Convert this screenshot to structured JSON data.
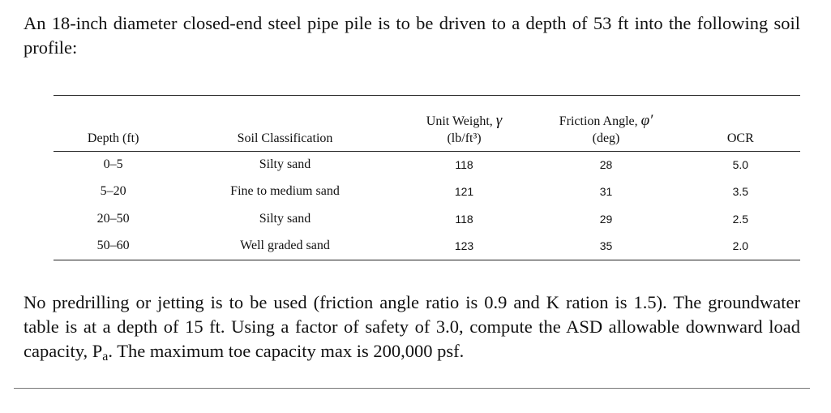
{
  "intro": "An 18-inch diameter closed-end steel pipe pile is to be driven to a depth of 53 ft into the following soil profile:",
  "table": {
    "headers": {
      "depth": "Depth (ft)",
      "soil": "Soil Classification",
      "unit_weight_line1": "Unit Weight, ",
      "unit_weight_symbol": "γ",
      "unit_weight_unit": "(lb/ft³)",
      "friction_line1": "Friction Angle, ",
      "friction_symbol": "φ′",
      "friction_unit": "(deg)",
      "ocr": "OCR"
    },
    "rows": [
      {
        "depth": "0–5",
        "soil": "Silty sand",
        "unit_weight": "118",
        "friction": "28",
        "ocr": "5.0"
      },
      {
        "depth": "5–20",
        "soil": "Fine to medium sand",
        "unit_weight": "121",
        "friction": "31",
        "ocr": "3.5"
      },
      {
        "depth": "20–50",
        "soil": "Silty sand",
        "unit_weight": "118",
        "friction": "29",
        "ocr": "2.5"
      },
      {
        "depth": "50–60",
        "soil": "Well graded sand",
        "unit_weight": "123",
        "friction": "35",
        "ocr": "2.0"
      }
    ]
  },
  "question": {
    "part1": "No predrilling or jetting is to be used (friction angle ratio is 0.9 and K ration is 1.5). The groundwater table is at a depth of 15 ft. Using a factor of safety of 3.0, compute the ASD allowable downward load capacity, P",
    "subscript": "a",
    "part2": ". The maximum toe capacity max is 200,000 psf."
  }
}
